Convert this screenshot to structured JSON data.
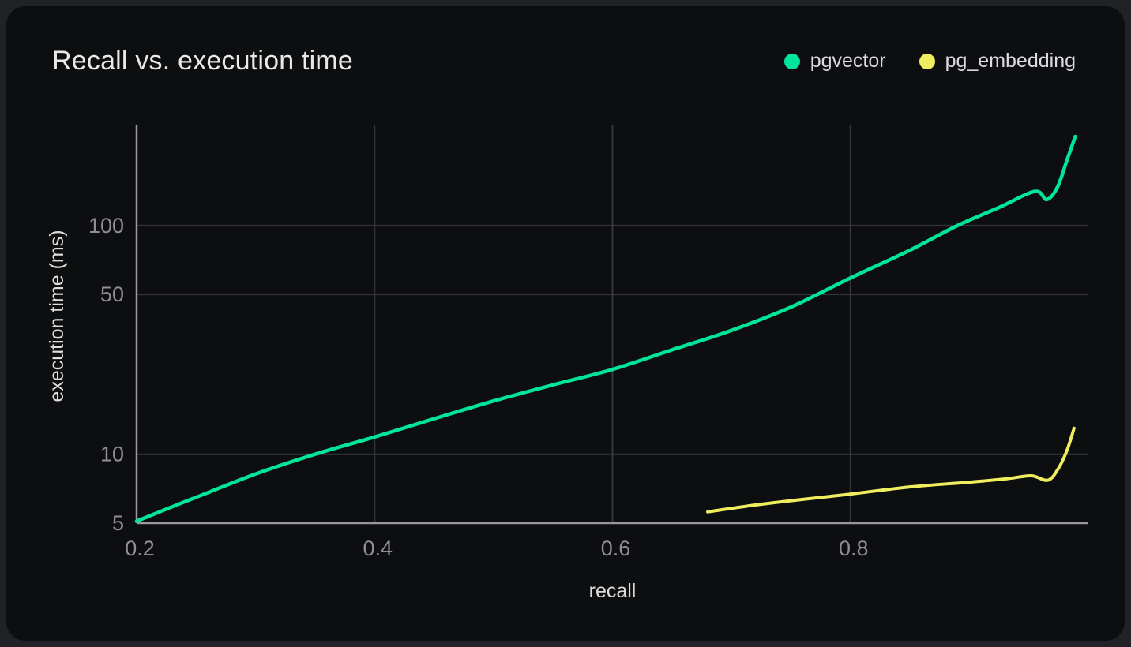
{
  "header": {
    "title": "Recall vs. execution time"
  },
  "legend": {
    "items": [
      {
        "label": "pgvector",
        "color": "#00E599"
      },
      {
        "label": "pg_embedding",
        "color": "#F0EE5F"
      }
    ]
  },
  "chart_data": {
    "type": "line",
    "title": "Recall vs. execution time",
    "xlabel": "recall",
    "ylabel": "execution time (ms)",
    "xscale": "linear",
    "yscale": "log",
    "xlim": [
      0.2,
      1.0
    ],
    "ylim": [
      5,
      276
    ],
    "xticks": [
      0.2,
      0.4,
      0.6,
      0.8
    ],
    "yticks": [
      5,
      10,
      50,
      100
    ],
    "grid": true,
    "legend_position": "top-right",
    "colors": {
      "background": "#0d0e0f",
      "page_background": "#212226",
      "grid_line": "#34363c",
      "axis_line": "#97979d",
      "tick_label": "#8e8e94",
      "axis_title": "#dededf",
      "title": "#e9e9ea"
    },
    "series": [
      {
        "name": "pgvector",
        "color": "#00E599",
        "points": [
          [
            0.2,
            5.1
          ],
          [
            0.23,
            5.9
          ],
          [
            0.26,
            6.8
          ],
          [
            0.3,
            8.2
          ],
          [
            0.35,
            10.0
          ],
          [
            0.4,
            11.9
          ],
          [
            0.45,
            14.3
          ],
          [
            0.5,
            17.1
          ],
          [
            0.55,
            20.1
          ],
          [
            0.6,
            23.5
          ],
          [
            0.65,
            28.6
          ],
          [
            0.7,
            34.8
          ],
          [
            0.75,
            44.0
          ],
          [
            0.8,
            59.0
          ],
          [
            0.85,
            78.0
          ],
          [
            0.89,
            100.0
          ],
          [
            0.925,
            120.0
          ],
          [
            0.955,
            141.0
          ],
          [
            0.965,
            130.0
          ],
          [
            0.974,
            147.0
          ],
          [
            0.982,
            193.0
          ],
          [
            0.989,
            245.0
          ]
        ]
      },
      {
        "name": "pg_embedding",
        "color": "#F0EE5F",
        "points": [
          [
            0.68,
            5.6
          ],
          [
            0.72,
            6.0
          ],
          [
            0.76,
            6.35
          ],
          [
            0.8,
            6.7
          ],
          [
            0.85,
            7.2
          ],
          [
            0.9,
            7.55
          ],
          [
            0.93,
            7.8
          ],
          [
            0.952,
            8.05
          ],
          [
            0.966,
            7.7
          ],
          [
            0.975,
            8.7
          ],
          [
            0.982,
            10.4
          ],
          [
            0.988,
            13.0
          ]
        ]
      }
    ]
  }
}
